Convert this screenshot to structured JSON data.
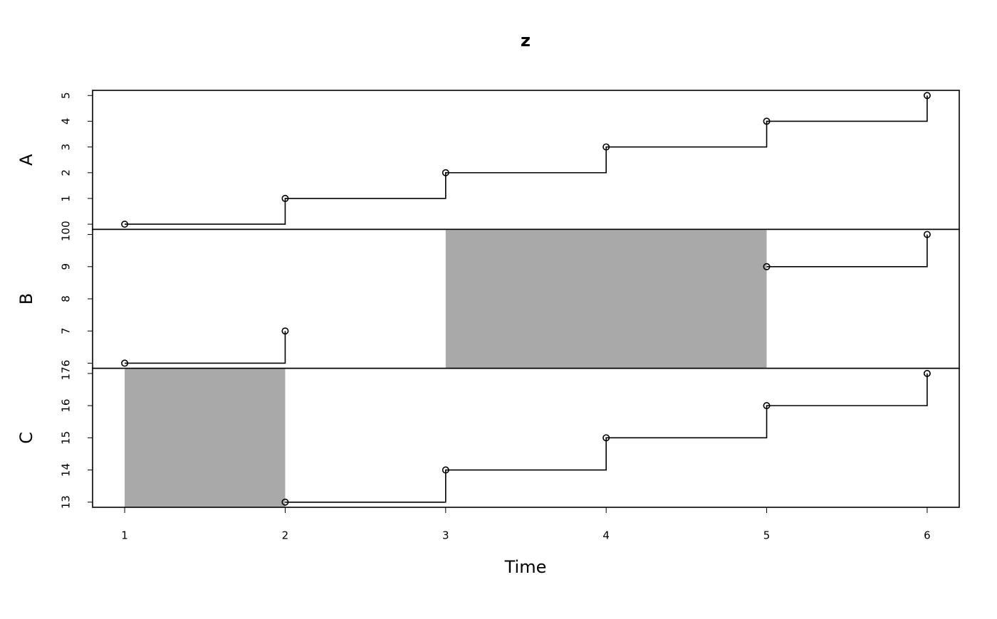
{
  "chart_data": {
    "type": "step",
    "title": "z",
    "xlabel": "Time",
    "x": [
      1,
      2,
      3,
      4,
      5,
      6
    ],
    "xlim": [
      0.8,
      6.2
    ],
    "xticks": [
      1,
      2,
      3,
      4,
      5,
      6
    ],
    "color": "#000000",
    "na_shade_color": "#a9a9a9",
    "series": [
      {
        "name": "A",
        "values": [
          0,
          1,
          2,
          3,
          4,
          5
        ],
        "ylim": [
          -0.2,
          5.2
        ],
        "yticks": [
          0,
          1,
          2,
          3,
          4,
          5
        ]
      },
      {
        "name": "B",
        "values": [
          6,
          7,
          null,
          null,
          9,
          10
        ],
        "ylim": [
          5.84,
          10.16
        ],
        "yticks": [
          6,
          7,
          8,
          9,
          10
        ]
      },
      {
        "name": "C",
        "values": [
          null,
          13,
          14,
          15,
          16,
          17
        ],
        "ylim": [
          12.84,
          17.16
        ],
        "yticks": [
          13,
          14,
          15,
          16,
          17
        ]
      }
    ]
  }
}
